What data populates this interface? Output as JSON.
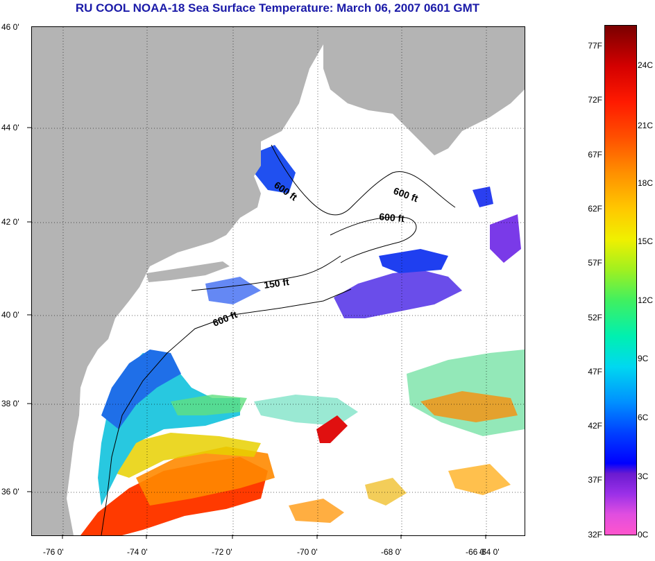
{
  "title": "RU COOL  NOAA-18  Sea Surface Temperature:  March 06, 2007 0601 GMT",
  "axes": {
    "lat_labels": [
      "46 0'",
      "44 0'",
      "42 0'",
      "40 0'",
      "38 0'",
      "36 0'"
    ],
    "lon_labels": [
      "-76 0'",
      "-74 0'",
      "-72 0'",
      "-70 0'",
      "-68 0'",
      "-66 0'",
      "-64 0'"
    ]
  },
  "contours": [
    {
      "label": "600 ft"
    },
    {
      "label": "600 ft"
    },
    {
      "label": "600 ft"
    },
    {
      "label": "150 ft"
    },
    {
      "label": "600 ft"
    }
  ],
  "colorbar": {
    "fahrenheit": [
      "77F",
      "72F",
      "67F",
      "62F",
      "57F",
      "52F",
      "47F",
      "42F",
      "37F",
      "32F"
    ],
    "celsius": [
      "24C",
      "21C",
      "18C",
      "15C",
      "12C",
      "9C",
      "6C",
      "3C",
      "0C"
    ]
  },
  "colors": {
    "land": "#b4b4b4",
    "title": "#1a1aa8"
  }
}
